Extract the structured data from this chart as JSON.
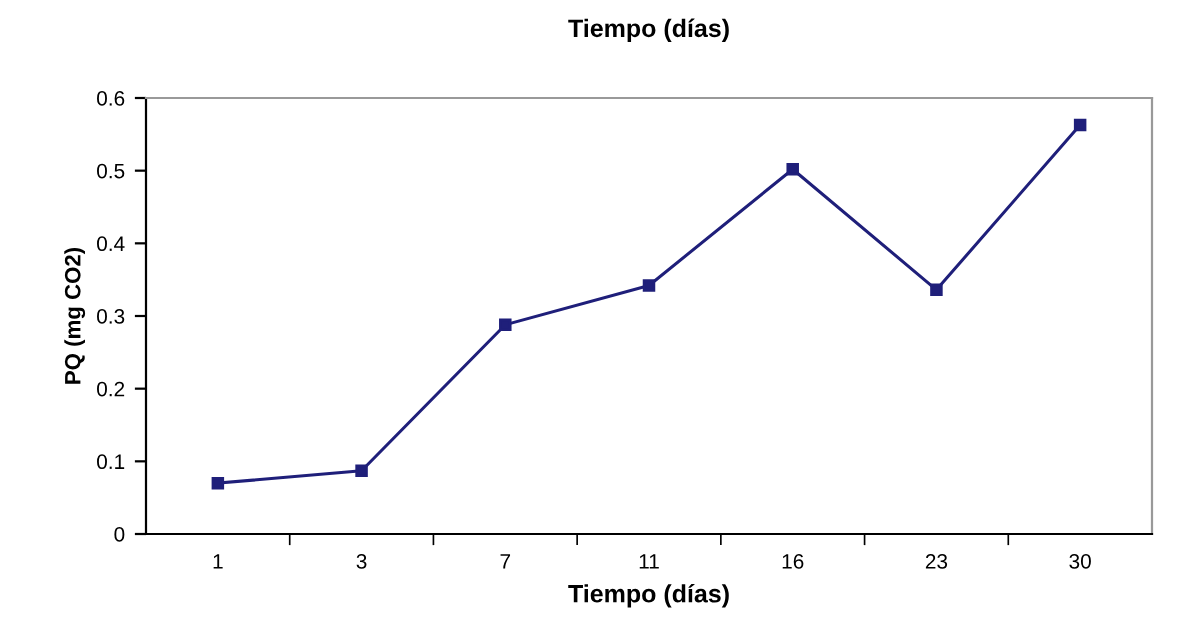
{
  "chart_data": {
    "type": "line",
    "title": "Tiempo (días)",
    "xlabel": "Tiempo (días)",
    "ylabel": "PQ (mg CO2)",
    "categories": [
      "1",
      "3",
      "7",
      "11",
      "16",
      "23",
      "30"
    ],
    "series": [
      {
        "color": "#1f1f7a",
        "values": [
          0.07,
          0.087,
          0.288,
          0.342,
          0.502,
          0.336,
          0.563
        ]
      }
    ],
    "ylim": [
      0,
      0.6
    ],
    "yticks": [
      0,
      0.1,
      0.2,
      0.3,
      0.4,
      0.5,
      0.6
    ],
    "grid": false,
    "marker": "square",
    "line_style": "solid",
    "legend": false
  }
}
